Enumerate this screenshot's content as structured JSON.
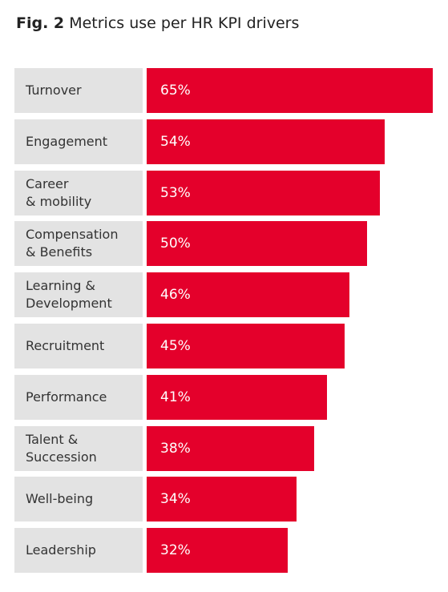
{
  "title_prefix": "Fig. 2",
  "title_text": "Metrics use per HR KPI drivers",
  "colors": {
    "bar": "#e4002b",
    "label_bg": "#e3e3e3",
    "value_text": "#ffffff"
  },
  "chart_data": {
    "type": "bar",
    "orientation": "horizontal",
    "title": "Fig. 2 Metrics use per HR KPI drivers",
    "categories": [
      "Turnover",
      "Engagement",
      "Career\n& mobility",
      "Compensation\n& Benefits",
      "Learning &\nDevelopment",
      "Recruitment",
      "Performance",
      "Talent &\nSuccession",
      "Well-being",
      "Leadership"
    ],
    "values": [
      65,
      54,
      53,
      50,
      46,
      45,
      41,
      38,
      34,
      32
    ],
    "value_labels": [
      "65%",
      "54%",
      "53%",
      "50%",
      "46%",
      "45%",
      "41%",
      "38%",
      "34%",
      "32%"
    ],
    "unit": "%",
    "xlim": [
      0,
      65
    ],
    "grid": false,
    "legend": "none"
  }
}
